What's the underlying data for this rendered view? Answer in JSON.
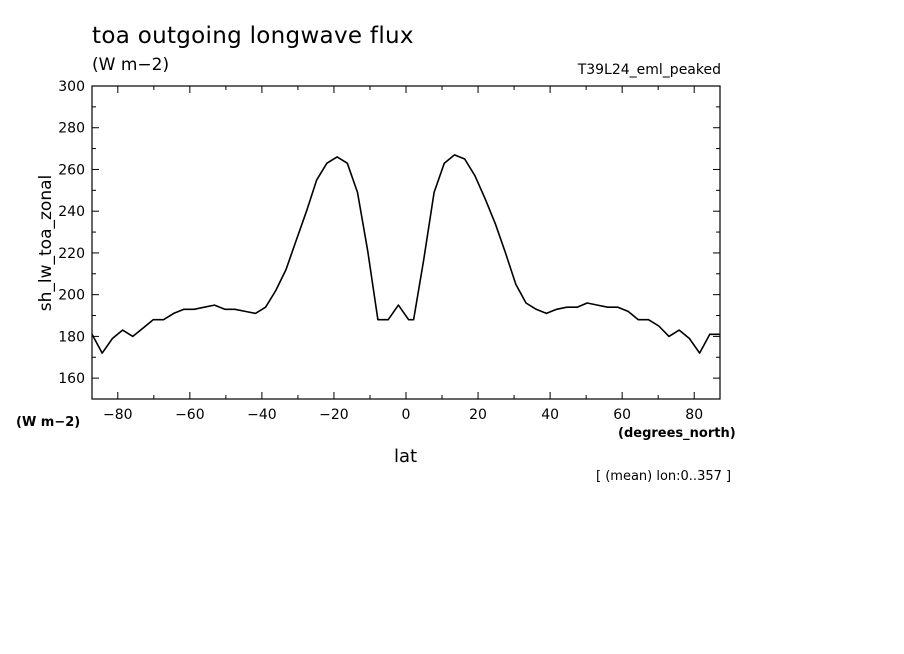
{
  "chart_data": {
    "type": "line",
    "title": "toa outgoing longwave flux",
    "subtitle": "(W m−2)",
    "dataset_label": "T39L24_eml_peaked",
    "xlabel": "lat",
    "x_units": "(degrees_north)",
    "ylabel": "sh_lw_toa_zonal",
    "y_units": "(W m−2)",
    "footnote": "[ (mean) lon:0..357 ]",
    "xlim": [
      -87.16,
      87.16
    ],
    "ylim": [
      150,
      300
    ],
    "x_ticks": [
      -80,
      -60,
      -40,
      -20,
      0,
      20,
      40,
      60,
      80
    ],
    "x_tick_labels": [
      "−80",
      "−60",
      "−40",
      "−20",
      "0",
      "20",
      "40",
      "60",
      "80"
    ],
    "y_ticks": [
      160,
      180,
      200,
      220,
      240,
      260,
      280,
      300
    ],
    "y_tick_labels": [
      "160",
      "180",
      "200",
      "220",
      "240",
      "260",
      "280",
      "300"
    ],
    "grid": false,
    "line_color": "#000000",
    "series": [
      {
        "x": [
          -87.16,
          -84.33,
          -81.5,
          -78.66,
          -75.83,
          -72.99,
          -70.16,
          -67.32,
          -64.49,
          -61.65,
          -58.82,
          -55.98,
          -53.15,
          -50.31,
          -47.48,
          -44.64,
          -41.81,
          -38.97,
          -36.14,
          -33.3,
          -30.47,
          -27.63,
          -24.8,
          -21.96,
          -19.13,
          -16.29,
          -13.46,
          -10.62,
          -7.79,
          -4.95,
          -2.12,
          0.71,
          2.12,
          4.95,
          7.79,
          10.62,
          13.46,
          16.29,
          19.13,
          21.96,
          24.8,
          27.63,
          30.47,
          33.3,
          36.14,
          38.97,
          41.81,
          44.64,
          47.48,
          50.31,
          53.15,
          55.98,
          58.82,
          61.65,
          64.49,
          67.32,
          70.16,
          72.99,
          75.83,
          78.66,
          81.5,
          84.33,
          87.16
        ],
        "y": [
          181,
          172,
          179,
          183,
          180,
          184,
          188,
          188,
          191,
          193,
          193,
          194,
          195,
          193,
          193,
          192,
          191,
          194,
          202,
          212,
          226,
          240,
          255,
          263,
          266,
          263,
          249,
          221,
          188,
          188,
          195,
          188,
          188,
          217,
          249,
          263,
          267,
          265,
          257,
          246,
          234,
          220,
          205,
          196,
          193,
          191,
          193,
          194,
          194,
          196,
          195,
          194,
          194,
          192,
          188,
          188,
          185,
          180,
          183,
          179,
          172,
          181,
          181
        ]
      }
    ]
  }
}
